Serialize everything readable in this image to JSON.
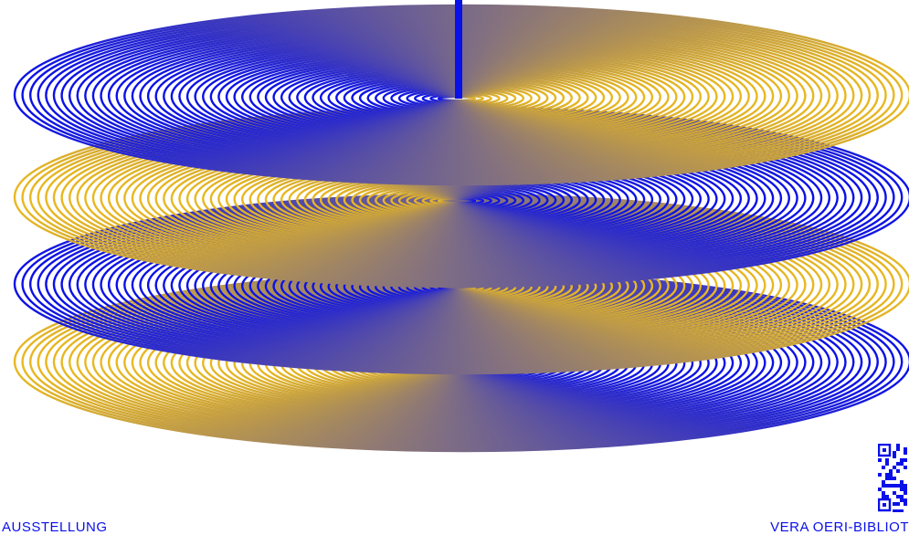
{
  "colors": {
    "blue": "#0a10e8",
    "gold": "#e8b820",
    "background": "#ffffff"
  },
  "artwork": {
    "description_icon": "stacked-spiral-discs",
    "disc_count": 4
  },
  "captions": {
    "left": "AUSSTELLUNG",
    "right": "VERA OERI-BIBLIOT"
  },
  "qr": {
    "icon": "qr-code-icon"
  }
}
